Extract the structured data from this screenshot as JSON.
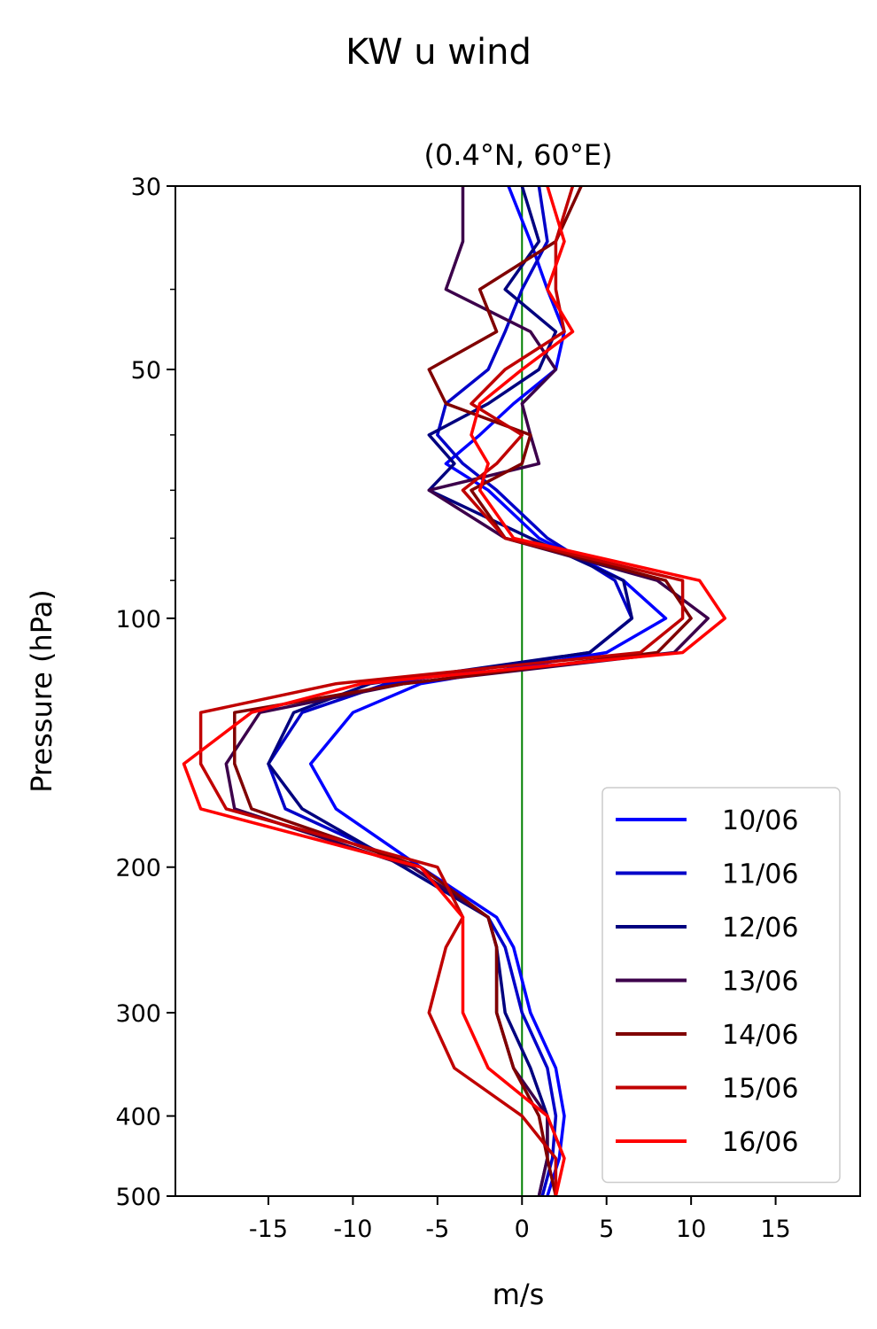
{
  "chart_data": {
    "type": "line",
    "title": "KW u wind",
    "subtitle": "(0.4°N, 60°E)",
    "xlabel": "m/s",
    "ylabel": "Pressure (hPa)",
    "xlim": [
      -20.5,
      20
    ],
    "ylim": [
      500,
      30
    ],
    "y_scale": "log",
    "x_ticks": [
      -15,
      -10,
      -5,
      0,
      5,
      10,
      15
    ],
    "x_tick_labels": [
      "-15",
      "-10",
      "-5",
      "0",
      "5",
      "10",
      "15"
    ],
    "y_ticks": [
      30,
      50,
      100,
      200,
      300,
      400,
      500
    ],
    "y_tick_labels": [
      "30",
      "50",
      "100",
      "200",
      "300",
      "400",
      "500"
    ],
    "y_minor_ticks": [
      40,
      60,
      70,
      80,
      90
    ],
    "zero_line": {
      "x": 0,
      "color": "#008000"
    },
    "legend": {
      "position": "lower-right"
    },
    "pressure_levels": [
      30,
      35,
      40,
      45,
      50,
      55,
      60,
      65,
      70,
      80,
      90,
      100,
      110,
      120,
      130,
      150,
      170,
      200,
      230,
      250,
      300,
      350,
      400,
      450,
      500
    ],
    "series": [
      {
        "name": "10/06",
        "color": "#0000ff",
        "values": [
          -0.8,
          0.5,
          1.5,
          2.5,
          2.0,
          -0.5,
          -2.5,
          -4.5,
          -2.0,
          1.0,
          6.0,
          8.5,
          5.0,
          -6.0,
          -10.0,
          -12.5,
          -11.0,
          -6.0,
          -1.5,
          -0.5,
          0.5,
          2.0,
          2.5,
          2.2,
          1.5
        ]
      },
      {
        "name": "11/06",
        "color": "#0000c8",
        "values": [
          1.0,
          1.5,
          0.0,
          -1.0,
          -2.0,
          -4.5,
          -5.0,
          -3.5,
          -1.5,
          1.5,
          5.5,
          6.5,
          4.0,
          -8.0,
          -13.0,
          -15.0,
          -14.0,
          -6.5,
          -2.0,
          -1.0,
          0.0,
          1.5,
          2.0,
          1.8,
          1.2
        ]
      },
      {
        "name": "12/06",
        "color": "#00007f",
        "values": [
          0.0,
          1.0,
          -1.0,
          2.0,
          1.0,
          -2.0,
          -5.5,
          -4.0,
          -5.5,
          0.5,
          6.0,
          6.5,
          4.0,
          -9.0,
          -13.5,
          -15.0,
          -13.0,
          -7.0,
          -2.0,
          -1.5,
          -1.0,
          0.5,
          1.5,
          1.5,
          1.0
        ]
      },
      {
        "name": "13/06",
        "color": "#3c004b",
        "values": [
          -3.5,
          -3.5,
          -4.5,
          0.5,
          2.0,
          0.0,
          0.5,
          1.0,
          -5.5,
          -1.0,
          8.0,
          11.0,
          9.0,
          -7.0,
          -15.5,
          -17.5,
          -17.0,
          -6.5,
          -2.0,
          -1.5,
          -1.5,
          -0.5,
          1.5,
          1.5,
          1.0
        ]
      },
      {
        "name": "14/06",
        "color": "#800000",
        "values": [
          3.5,
          2.0,
          -2.5,
          -1.5,
          -5.5,
          -4.5,
          0.5,
          0.0,
          -3.0,
          -1.0,
          8.5,
          10.0,
          8.0,
          -7.0,
          -17.0,
          -17.0,
          -16.0,
          -6.0,
          -2.0,
          -1.5,
          -1.5,
          -0.5,
          1.0,
          1.5,
          2.0
        ]
      },
      {
        "name": "15/06",
        "color": "#c00000",
        "values": [
          3.0,
          2.0,
          2.0,
          2.5,
          -1.0,
          -3.0,
          0.0,
          -1.5,
          -3.5,
          -1.0,
          9.5,
          9.5,
          7.0,
          -11.0,
          -19.0,
          -19.0,
          -17.5,
          -5.0,
          -3.5,
          -4.5,
          -5.5,
          -4.0,
          0.0,
          2.0,
          2.0
        ]
      },
      {
        "name": "16/06",
        "color": "#ff0000",
        "values": [
          1.5,
          2.5,
          1.5,
          3.0,
          0.0,
          -2.5,
          -3.0,
          -2.0,
          -2.5,
          -0.5,
          10.5,
          12.0,
          9.5,
          -9.5,
          -16.0,
          -20.0,
          -19.0,
          -6.0,
          -3.5,
          -3.5,
          -3.5,
          -2.0,
          1.5,
          2.5,
          2.0
        ]
      }
    ]
  }
}
